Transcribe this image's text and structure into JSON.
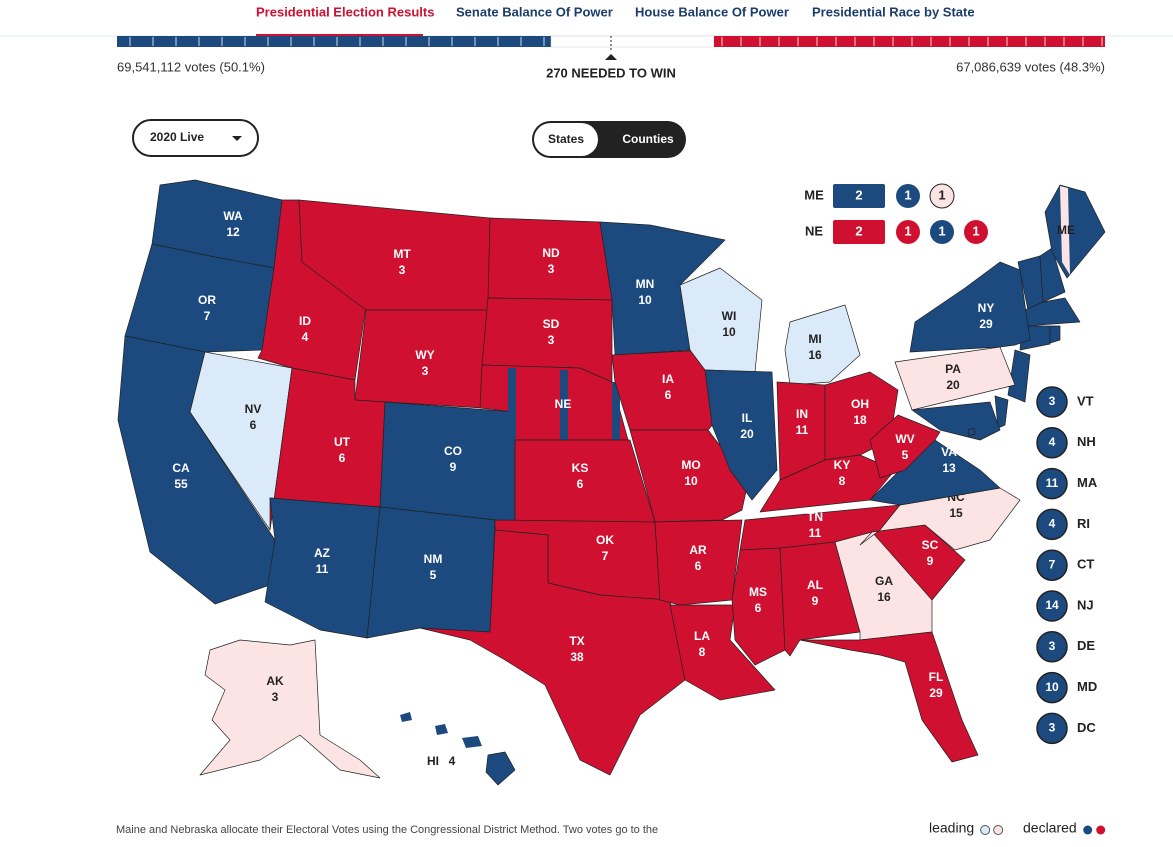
{
  "nav": [
    "Presidential Election Results",
    "Senate Balance Of Power",
    "House Balance Of Power",
    "Presidential Race by State"
  ],
  "bar": {
    "left_label": "69,541,112 votes (50.1%)",
    "center_label": "270 NEEDED TO WIN",
    "right_label": "67,086,639 votes (48.3%)"
  },
  "dropdown": "2020 Live",
  "toggle": [
    "States",
    "Counties"
  ],
  "split_states": [
    {
      "abbr": "ME",
      "boxes": [
        {
          "text": "2",
          "color": "#1c4a7f"
        },
        {
          "text": "1",
          "color": "#1c4a7f"
        },
        {
          "text": "1",
          "color": "#fce4e4"
        }
      ]
    },
    {
      "abbr": "NE",
      "boxes": [
        {
          "text": "2",
          "color": "#cf1030"
        },
        {
          "text": "1",
          "color": "#cf1030"
        },
        {
          "text": "1",
          "color": "#1c4a7f"
        },
        {
          "text": "1",
          "color": "#cf1030"
        }
      ]
    }
  ],
  "states": [
    {
      "abbr": "WA",
      "ev": 12,
      "color": "#1c4a7f"
    },
    {
      "abbr": "OR",
      "ev": 7,
      "color": "#1c4a7f"
    },
    {
      "abbr": "CA",
      "ev": 55,
      "color": "#1c4a7f"
    },
    {
      "abbr": "NV",
      "ev": 6,
      "color": "#dbeaf8"
    },
    {
      "abbr": "ID",
      "ev": 4,
      "color": "#cf1030"
    },
    {
      "abbr": "MT",
      "ev": 3,
      "color": "#cf1030"
    },
    {
      "abbr": "WY",
      "ev": 3,
      "color": "#cf1030"
    },
    {
      "abbr": "UT",
      "ev": 6,
      "color": "#cf1030"
    },
    {
      "abbr": "CO",
      "ev": 9,
      "color": "#1c4a7f"
    },
    {
      "abbr": "AZ",
      "ev": 11,
      "color": "#1c4a7f"
    },
    {
      "abbr": "NM",
      "ev": 5,
      "color": "#1c4a7f"
    },
    {
      "abbr": "ND",
      "ev": 3,
      "color": "#cf1030"
    },
    {
      "abbr": "SD",
      "ev": 3,
      "color": "#cf1030"
    },
    {
      "abbr": "NE",
      "color": "#cf1030"
    },
    {
      "abbr": "KS",
      "ev": 6,
      "color": "#cf1030"
    },
    {
      "abbr": "OK",
      "ev": 7,
      "color": "#cf1030"
    },
    {
      "abbr": "TX",
      "ev": 38,
      "color": "#cf1030"
    },
    {
      "abbr": "MN",
      "ev": 10,
      "color": "#1c4a7f"
    },
    {
      "abbr": "IA",
      "ev": 6,
      "color": "#cf1030"
    },
    {
      "abbr": "MO",
      "ev": 10,
      "color": "#cf1030"
    },
    {
      "abbr": "AR",
      "ev": 6,
      "color": "#cf1030"
    },
    {
      "abbr": "LA",
      "ev": 8,
      "color": "#cf1030"
    },
    {
      "abbr": "WI",
      "ev": 10,
      "color": "#dbeaf8"
    },
    {
      "abbr": "MI",
      "ev": 16,
      "color": "#dbeaf8"
    },
    {
      "abbr": "IL",
      "ev": 20,
      "color": "#1c4a7f"
    },
    {
      "abbr": "IN",
      "ev": 11,
      "color": "#cf1030"
    },
    {
      "abbr": "OH",
      "ev": 18,
      "color": "#cf1030"
    },
    {
      "abbr": "KY",
      "ev": 8,
      "color": "#cf1030"
    },
    {
      "abbr": "TN",
      "ev": 11,
      "color": "#cf1030"
    },
    {
      "abbr": "MS",
      "ev": 6,
      "color": "#cf1030"
    },
    {
      "abbr": "AL",
      "ev": 9,
      "color": "#cf1030"
    },
    {
      "abbr": "GA",
      "ev": 16,
      "color": "#fce4e4"
    },
    {
      "abbr": "FL",
      "ev": 29,
      "color": "#cf1030"
    },
    {
      "abbr": "SC",
      "ev": 9,
      "color": "#cf1030"
    },
    {
      "abbr": "NC",
      "ev": 15,
      "color": "#fce4e4"
    },
    {
      "abbr": "VA",
      "ev": 13,
      "color": "#1c4a7f"
    },
    {
      "abbr": "WV",
      "ev": 5,
      "color": "#cf1030"
    },
    {
      "abbr": "PA",
      "ev": 20,
      "color": "#fce4e4"
    },
    {
      "abbr": "NY",
      "ev": 29,
      "color": "#1c4a7f"
    },
    {
      "abbr": "ME",
      "color": "#1c4a7f"
    },
    {
      "abbr": "AK",
      "ev": 3,
      "color": "#fce4e4"
    },
    {
      "abbr": "HI",
      "ev": 4,
      "color": "#1c4a7f"
    }
  ],
  "small_states": [
    {
      "abbr": "VT",
      "ev": 3,
      "color": "#1c4a7f"
    },
    {
      "abbr": "NH",
      "ev": 4,
      "color": "#1c4a7f"
    },
    {
      "abbr": "MA",
      "ev": 11,
      "color": "#1c4a7f"
    },
    {
      "abbr": "RI",
      "ev": 4,
      "color": "#1c4a7f"
    },
    {
      "abbr": "CT",
      "ev": 7,
      "color": "#1c4a7f"
    },
    {
      "abbr": "NJ",
      "ev": 14,
      "color": "#1c4a7f"
    },
    {
      "abbr": "DE",
      "ev": 3,
      "color": "#1c4a7f"
    },
    {
      "abbr": "MD",
      "ev": 10,
      "color": "#1c4a7f"
    },
    {
      "abbr": "DC",
      "ev": 3,
      "color": "#1c4a7f"
    }
  ],
  "footer": "Maine and Nebraska allocate their Electoral Votes using the Congressional District Method. Two votes go to the",
  "legend": [
    {
      "label": "leading",
      "colors": [
        "#dbeaf8",
        "#fce4e4"
      ]
    },
    {
      "label": "declared",
      "colors": [
        "#1c4a7f",
        "#cf1030"
      ]
    }
  ]
}
